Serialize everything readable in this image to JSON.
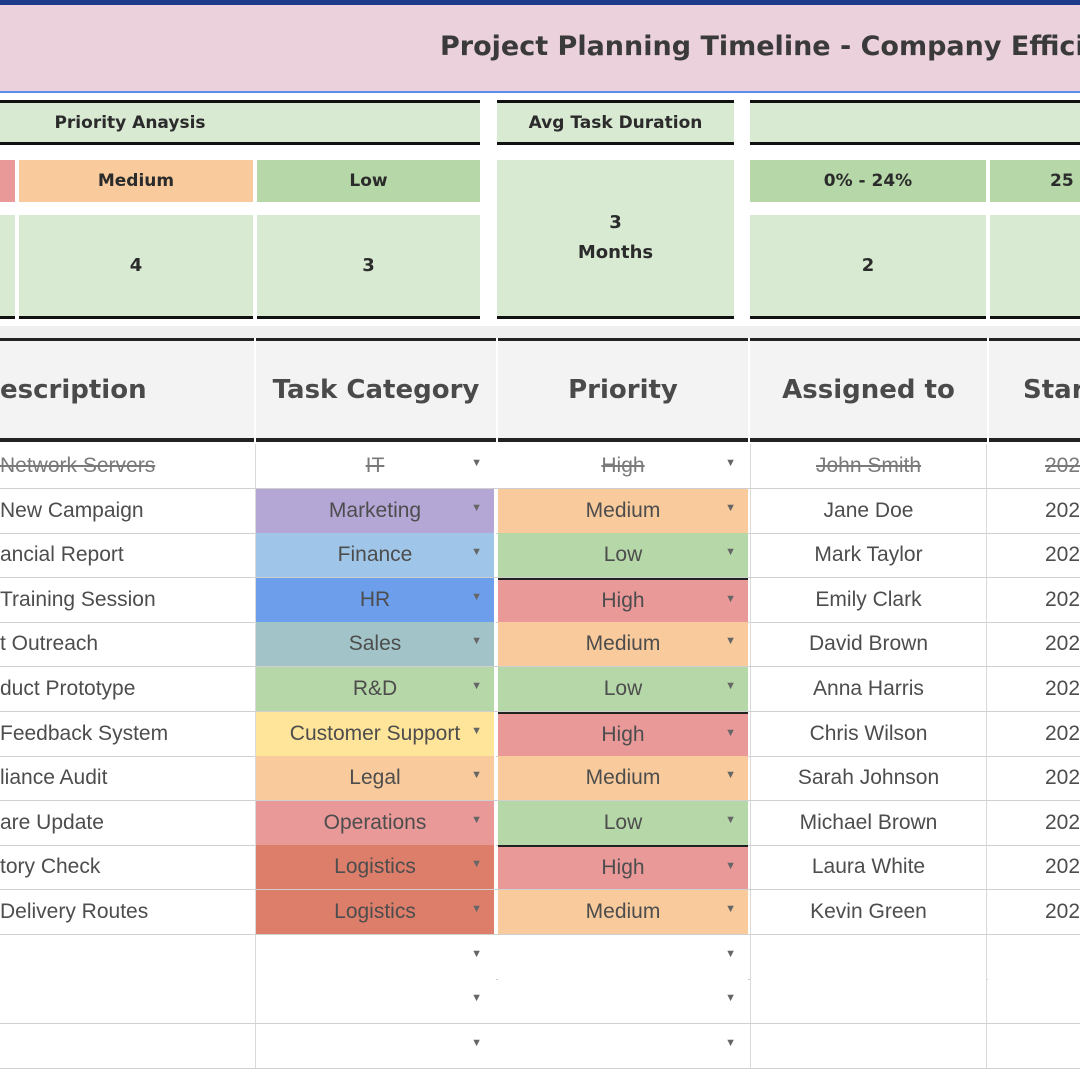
{
  "title": "Project Planning Timeline - Company Efficienc",
  "summary": {
    "priority_analysis_label": "Priority Anaysis",
    "avg_duration_label": "Avg Task Duration",
    "priority_headers": {
      "medium": "Medium",
      "low": "Low"
    },
    "priority_counts": {
      "medium": "4",
      "low": "3"
    },
    "avg_duration_value": "3",
    "avg_duration_unit": "Months",
    "progress_headers": [
      "0% - 24%",
      "25"
    ],
    "progress_counts": [
      "2"
    ]
  },
  "table": {
    "headers": {
      "description": "escription",
      "category": "Task Category",
      "priority": "Priority",
      "assigned": "Assigned to",
      "start": "Start"
    },
    "rows": [
      {
        "description": "Network Servers",
        "category": "IT",
        "priority": "High",
        "assigned": "John Smith",
        "start": "202",
        "done": true
      },
      {
        "description": "New Campaign",
        "category": "Marketing",
        "priority": "Medium",
        "assigned": "Jane Doe",
        "start": "202"
      },
      {
        "description": "ancial Report",
        "category": "Finance",
        "priority": "Low",
        "assigned": "Mark Taylor",
        "start": "202"
      },
      {
        "description": "Training Session",
        "category": "HR",
        "priority": "High",
        "assigned": "Emily Clark",
        "start": "202"
      },
      {
        "description": "t Outreach",
        "category": "Sales",
        "priority": "Medium",
        "assigned": "David Brown",
        "start": "202"
      },
      {
        "description": "duct Prototype",
        "category": "R&D",
        "priority": "Low",
        "assigned": "Anna Harris",
        "start": "202"
      },
      {
        "description": "Feedback System",
        "category": "Customer Support",
        "priority": "High",
        "assigned": "Chris Wilson",
        "start": "202"
      },
      {
        "description": "liance Audit",
        "category": "Legal",
        "priority": "Medium",
        "assigned": "Sarah Johnson",
        "start": "202"
      },
      {
        "description": "are Update",
        "category": "Operations",
        "priority": "Low",
        "assigned": "Michael Brown",
        "start": "202"
      },
      {
        "description": "tory Check",
        "category": "Logistics",
        "priority": "High",
        "assigned": "Laura White",
        "start": "202"
      },
      {
        "description": "Delivery Routes",
        "category": "Logistics",
        "priority": "Medium",
        "assigned": "Kevin Green",
        "start": "202"
      }
    ]
  },
  "colors": {
    "category": {
      "IT": "#ffffff",
      "Marketing": "#b4a7d6",
      "Finance": "#9fc5e8",
      "HR": "#6d9eeb",
      "Sales": "#a2c4c9",
      "R&D": "#b6d7a8",
      "Customer Support": "#ffe599",
      "Legal": "#f9cb9c",
      "Operations": "#ea9999",
      "Logistics": "#dd7e6b"
    },
    "priority": {
      "High": "#ea9999",
      "Medium": "#f9cb9c",
      "Low": "#b6d7a8"
    }
  }
}
